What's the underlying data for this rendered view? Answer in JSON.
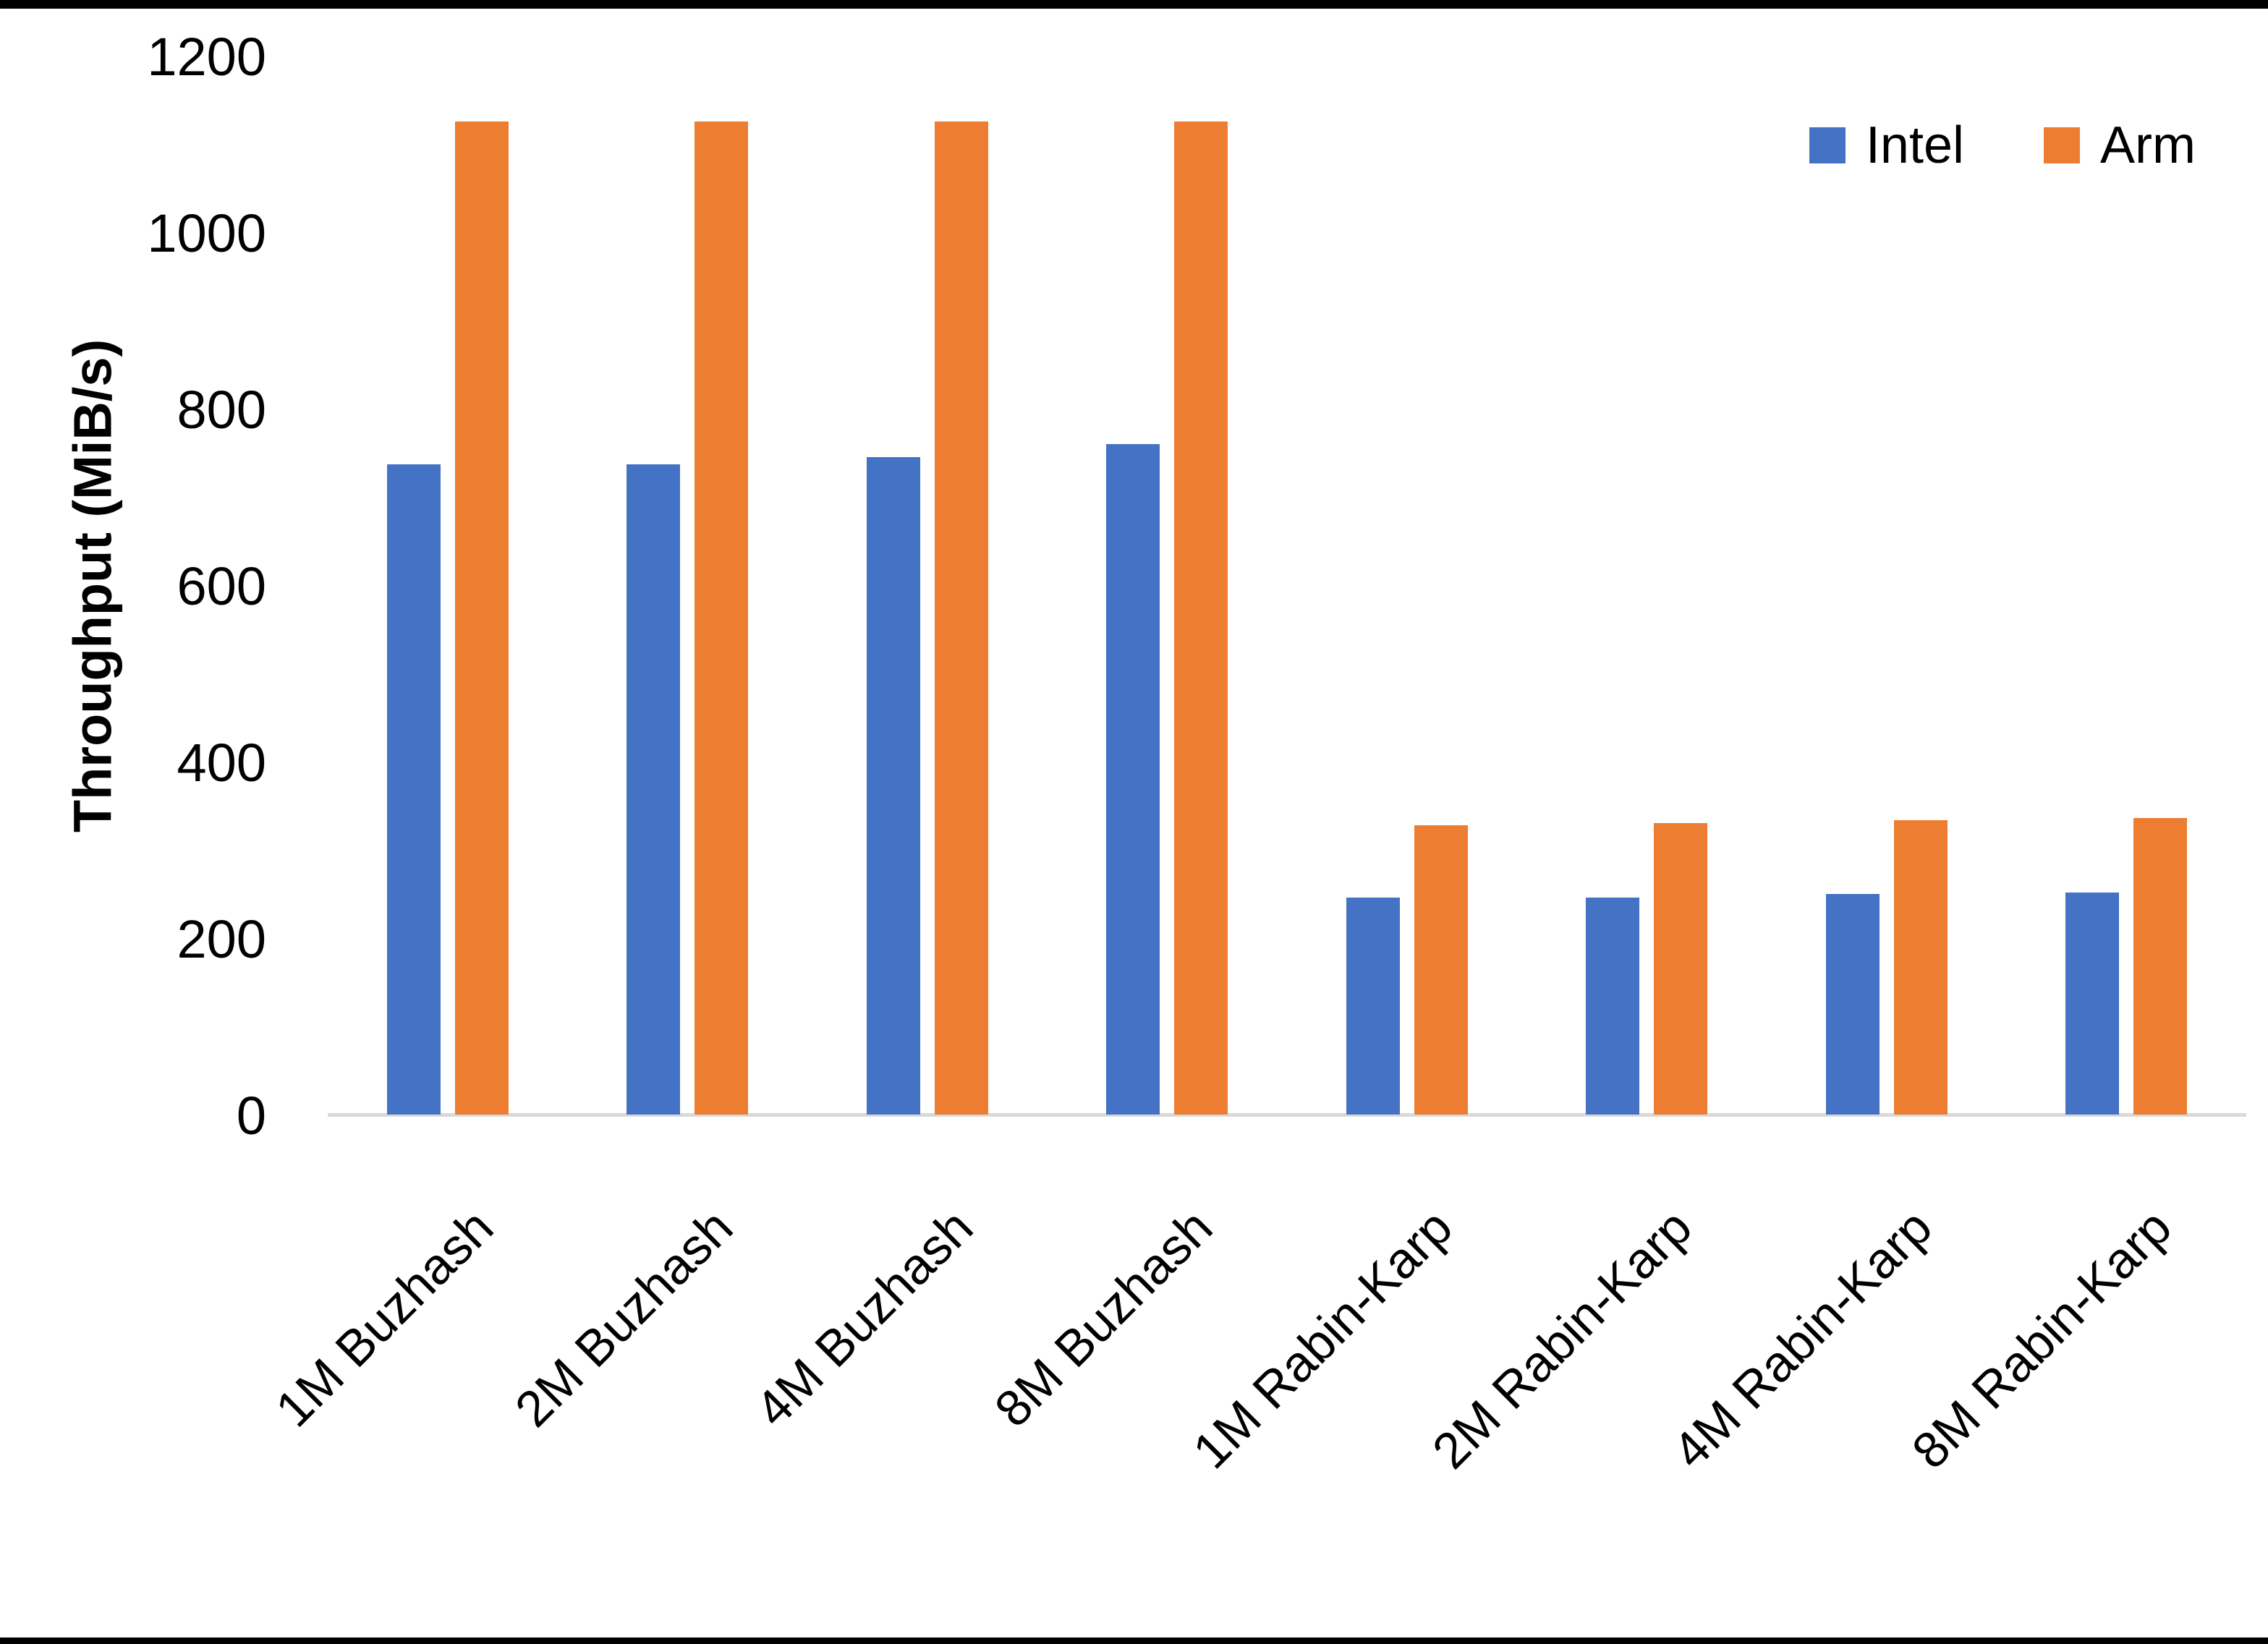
{
  "page": {
    "background": "#ffffff",
    "edge_border_color": "#000000"
  },
  "chart_data": {
    "type": "bar",
    "title": "",
    "categories": [
      "1M Buzhash",
      "2M Buzhash",
      "4M Buzhash",
      "8M Buzhash",
      "1M Rabin-Karp",
      "2M Rabin-Karp",
      "4M Rabin-Karp",
      "8M Rabin-Karp"
    ],
    "series": [
      {
        "name": "Intel",
        "color": "#4472C4",
        "values": [
          737,
          737,
          745,
          760,
          246,
          246,
          250,
          252
        ]
      },
      {
        "name": "Arm",
        "color": "#ED7D31",
        "values": [
          1125,
          1125,
          1125,
          1125,
          328,
          330,
          334,
          336
        ]
      }
    ],
    "xlabel": "",
    "ylabel": "Throughput (MiB/s)",
    "ylim": [
      0,
      1200
    ],
    "yticks": [
      0,
      200,
      400,
      600,
      800,
      1000,
      1200
    ],
    "grid": false,
    "legend_position": "top-right",
    "axis_line_color": "#D9D9D9",
    "text_color": "#000000"
  }
}
